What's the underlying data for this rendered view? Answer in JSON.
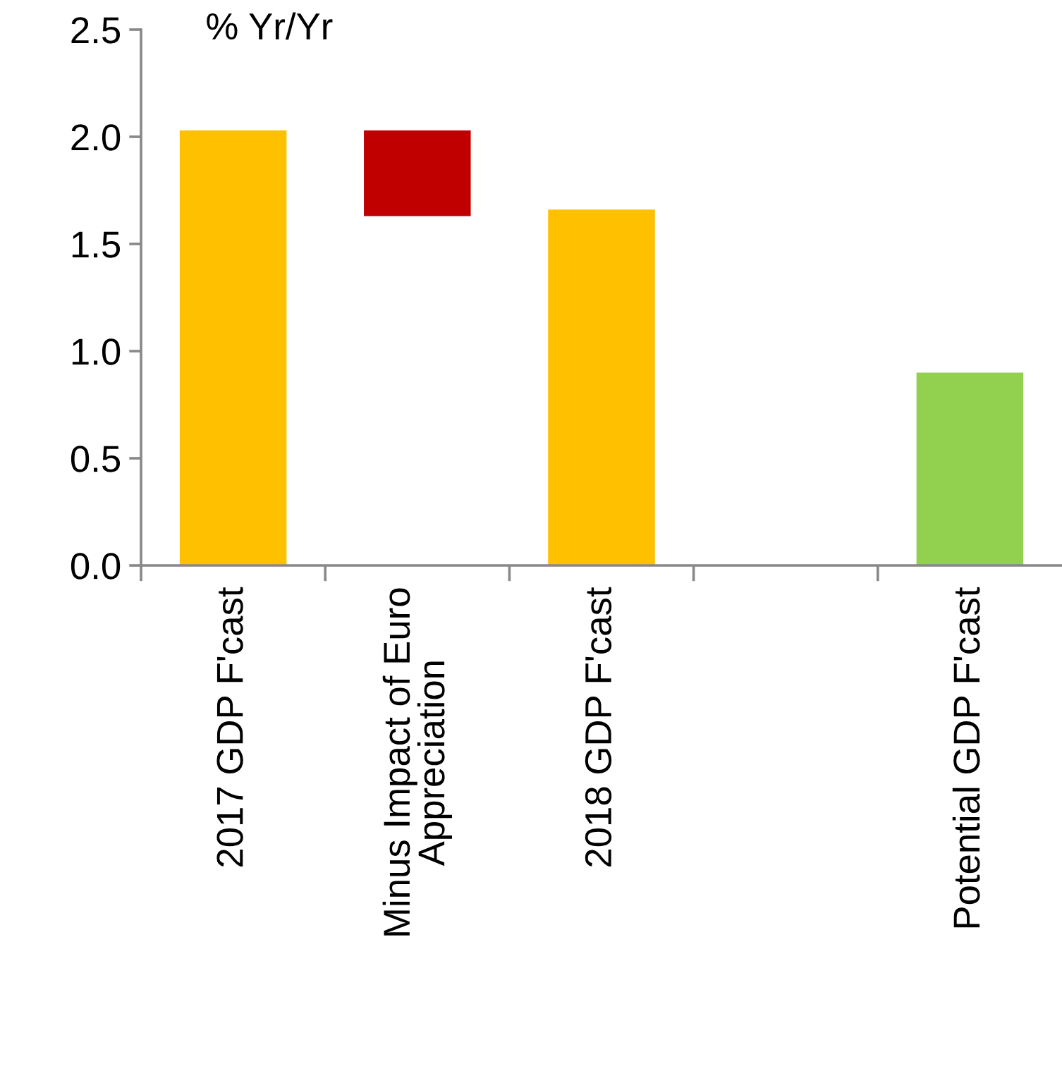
{
  "chart_data": {
    "type": "bar",
    "ylabel": "% Yr/Yr",
    "categories": [
      "2017 GDP F'cast",
      "Minus Impact of Euro Appreciation",
      "2018 GDP F'cast",
      null,
      "Potential GDP F'cast"
    ],
    "values": [
      2.03,
      0.4,
      1.66,
      null,
      0.9
    ],
    "base": [
      0,
      1.63,
      0,
      null,
      0
    ],
    "colors": [
      "#ffc000",
      "#c00000",
      "#ffc000",
      null,
      "#92d050"
    ],
    "ylim": [
      0,
      2.5
    ],
    "yticks": [
      {
        "value": 0,
        "label": "0.0"
      },
      {
        "value": 0.5,
        "label": "0.5"
      },
      {
        "value": 1,
        "label": "1.0"
      },
      {
        "value": 1.5,
        "label": "1.5"
      },
      {
        "value": 2,
        "label": "2.0"
      },
      {
        "value": 2.5,
        "label": "2.5"
      }
    ],
    "grid": false,
    "legend": false
  }
}
